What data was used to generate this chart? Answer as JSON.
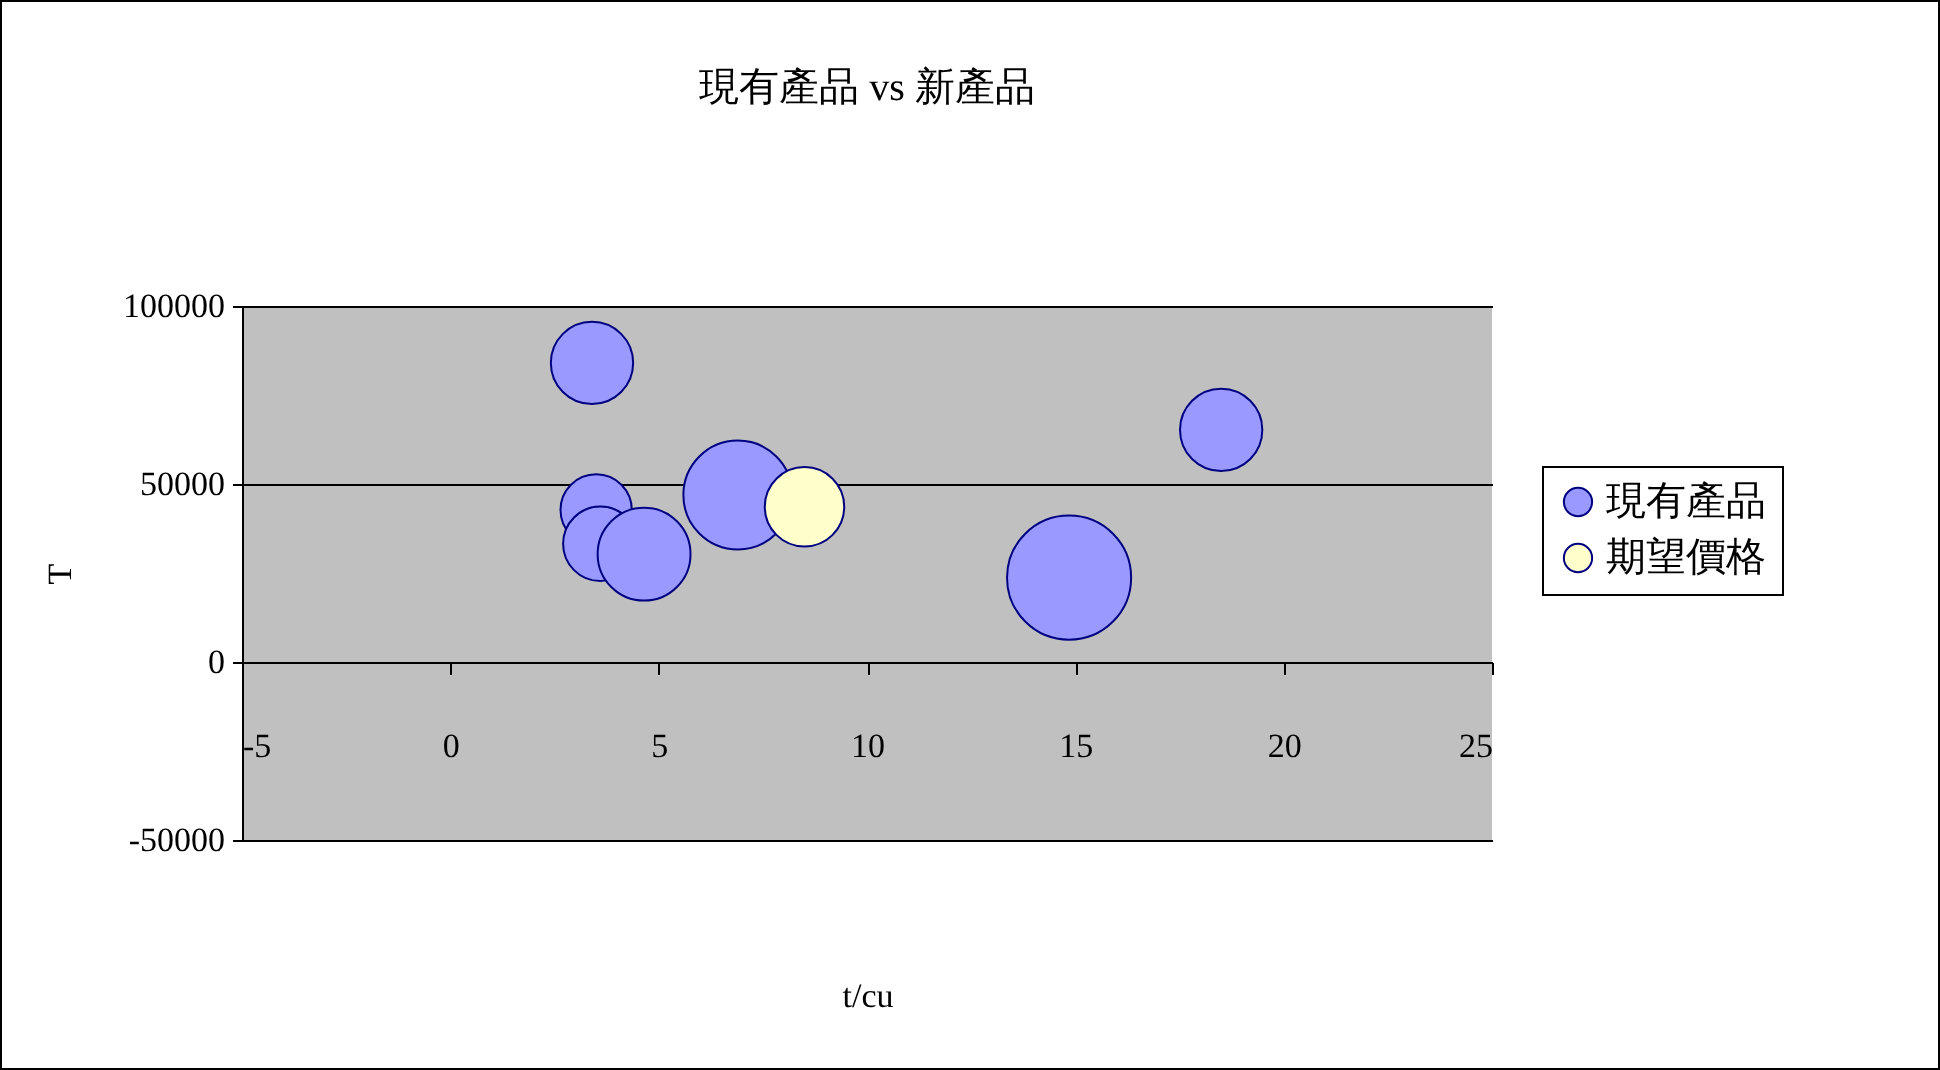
{
  "chart_data": {
    "type": "bubble",
    "title": "現有產品 vs 新產品",
    "xlabel": "t/cu",
    "ylabel": "T",
    "xlim": [
      -5,
      25
    ],
    "xticks": [
      -5,
      0,
      5,
      10,
      15,
      20,
      25
    ],
    "ylim": [
      -50000,
      100000
    ],
    "yticks": [
      -50000,
      0,
      50000,
      100000
    ],
    "grid": "y",
    "legend": "right",
    "series": [
      {
        "name": "現有產品",
        "color": "#9999ff",
        "x": [
          3.4,
          3.5,
          3.6,
          4.65,
          6.9,
          14.85,
          18.5
        ],
        "values": [
          84000,
          42700,
          33200,
          30300,
          46900,
          23700,
          65200
        ],
        "sizes": [
          0.44,
          0.33,
          0.36,
          0.56,
          0.77,
          1,
          0.44
        ]
      },
      {
        "name": "期望價格",
        "color": "#ffffcc",
        "x": [
          8.5
        ],
        "values": [
          43600
        ],
        "sizes": [
          0.41
        ]
      }
    ]
  }
}
